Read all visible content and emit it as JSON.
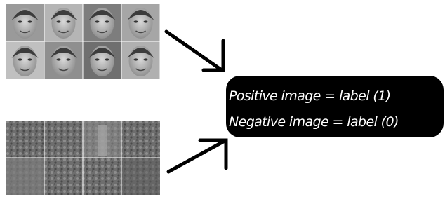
{
  "label_box": {
    "lines": [
      "Positive image = label (1)",
      "Negative image = label (0)"
    ]
  }
}
